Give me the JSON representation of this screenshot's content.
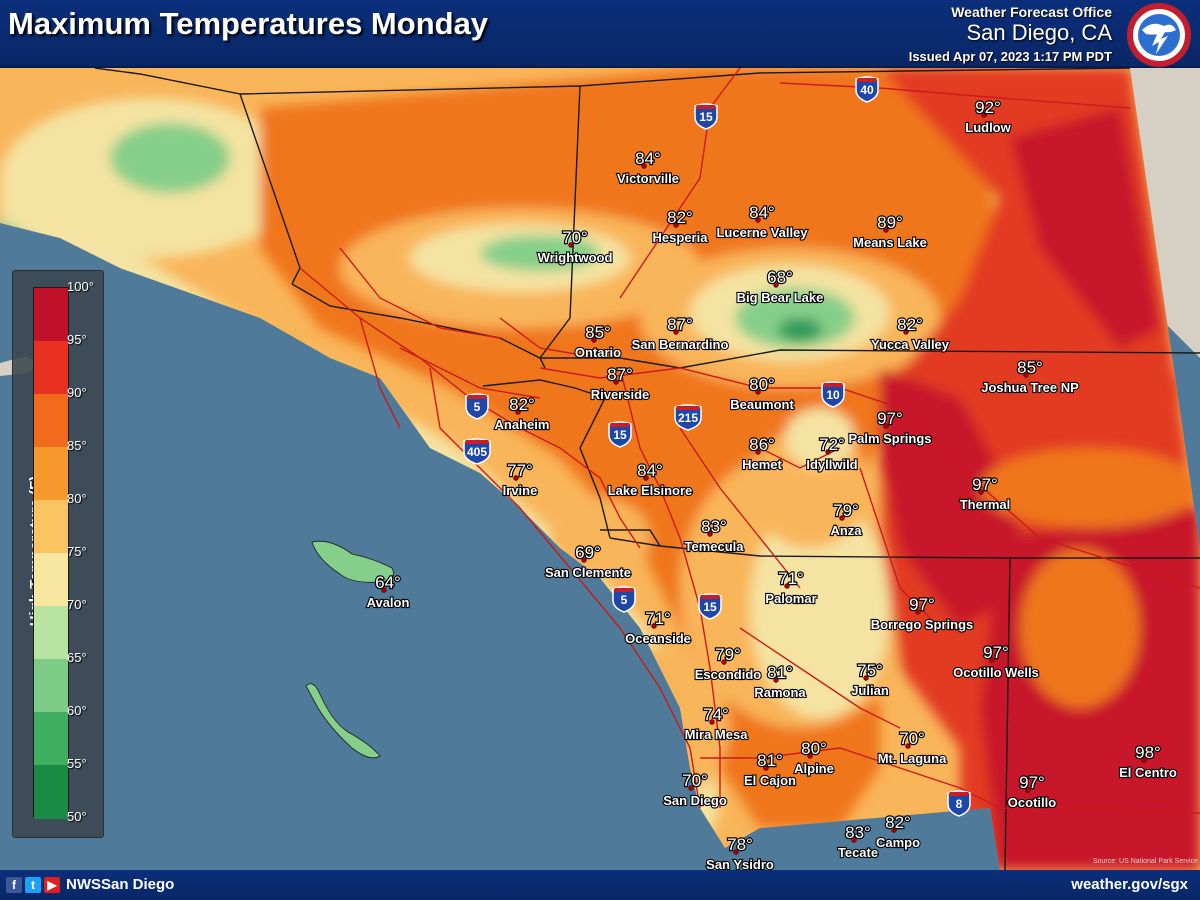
{
  "header": {
    "title": "Maximum Temperatures Monday",
    "office_label": "Weather Forecast Office",
    "office_city": "San Diego, CA",
    "issued": "Issued Apr 07, 2023 1:17 PM PDT",
    "logo_text": "NATIONAL WEATHER SERVICE"
  },
  "legend": {
    "title": "High Temperature (F)",
    "ticks": [
      "100°",
      "95°",
      "90°",
      "85°",
      "80°",
      "75°",
      "70°",
      "65°",
      "60°",
      "55°",
      "50°"
    ],
    "colors": [
      "#c0102a",
      "#e83020",
      "#f26a1c",
      "#f7992c",
      "#fbc462",
      "#f6e6a0",
      "#b9e3a0",
      "#7ccc85",
      "#3fae60",
      "#1b8a45"
    ]
  },
  "map": {
    "colors": {
      "ocean": "#4f7a9a",
      "desert": "#d6d0c4",
      "hot": "#e23a22",
      "very_hot": "#c8142a",
      "warm": "#f0761e",
      "mild": "#f9b55a",
      "cool": "#f4e3a2",
      "green": "#86cf8a",
      "dark_green": "#2e9a56",
      "road": "#cc1a1a",
      "boundary": "#1a1a1a"
    },
    "cities": [
      {
        "temp": "92°",
        "name": "Ludlow"
      },
      {
        "temp": "84°",
        "name": "Victorville"
      },
      {
        "temp": "82°",
        "name": "Hesperia"
      },
      {
        "temp": "84°",
        "name": "Lucerne Valley"
      },
      {
        "temp": "89°",
        "name": "Means Lake"
      },
      {
        "temp": "70°",
        "name": "Wrightwood"
      },
      {
        "temp": "68°",
        "name": "Big Bear Lake"
      },
      {
        "temp": "85°",
        "name": "Ontario"
      },
      {
        "temp": "87°",
        "name": "San Bernardino"
      },
      {
        "temp": "82°",
        "name": "Yucca Valley"
      },
      {
        "temp": "85°",
        "name": "Joshua Tree NP"
      },
      {
        "temp": "87°",
        "name": "Riverside"
      },
      {
        "temp": "80°",
        "name": "Beaumont"
      },
      {
        "temp": "82°",
        "name": "Anaheim"
      },
      {
        "temp": "97°",
        "name": "Palm Springs"
      },
      {
        "temp": "86°",
        "name": "Hemet"
      },
      {
        "temp": "72°",
        "name": "Idyllwild"
      },
      {
        "temp": "77°",
        "name": "Irvine"
      },
      {
        "temp": "84°",
        "name": "Lake Elsinore"
      },
      {
        "temp": "97°",
        "name": "Thermal"
      },
      {
        "temp": "79°",
        "name": "Anza"
      },
      {
        "temp": "83°",
        "name": "Temecula"
      },
      {
        "temp": "69°",
        "name": "San Clemente"
      },
      {
        "temp": "64°",
        "name": "Avalon"
      },
      {
        "temp": "71°",
        "name": "Palomar"
      },
      {
        "temp": "97°",
        "name": "Borrego Springs"
      },
      {
        "temp": "71°",
        "name": "Oceanside"
      },
      {
        "temp": "97°",
        "name": "Ocotillo Wells"
      },
      {
        "temp": "79°",
        "name": "Escondido"
      },
      {
        "temp": "81°",
        "name": "Ramona"
      },
      {
        "temp": "75°",
        "name": "Julian"
      },
      {
        "temp": "74°",
        "name": "Mira Mesa"
      },
      {
        "temp": "70°",
        "name": "Mt. Laguna"
      },
      {
        "temp": "98°",
        "name": "El Centro"
      },
      {
        "temp": "81°",
        "name": "El Cajon"
      },
      {
        "temp": "80°",
        "name": "Alpine"
      },
      {
        "temp": "97°",
        "name": "Ocotillo"
      },
      {
        "temp": "70°",
        "name": "San Diego"
      },
      {
        "temp": "82°",
        "name": "Campo"
      },
      {
        "temp": "83°",
        "name": "Tecate"
      },
      {
        "temp": "78°",
        "name": "San Ysidro"
      }
    ],
    "highways": [
      {
        "name": "I-40",
        "number": "40"
      },
      {
        "name": "I-15",
        "number": "15"
      },
      {
        "name": "I-10",
        "number": "10"
      },
      {
        "name": "I-5",
        "number": "5"
      },
      {
        "name": "I-405",
        "number": "405"
      },
      {
        "name": "I-215",
        "number": "215"
      },
      {
        "name": "I-15",
        "number": "15"
      },
      {
        "name": "I-5",
        "number": "5"
      },
      {
        "name": "I-15",
        "number": "15"
      },
      {
        "name": "I-8",
        "number": "8"
      }
    ]
  },
  "footer": {
    "handle": "NWSSan Diego",
    "site": "weather.gov/sgx",
    "credit": "Source: US National Park Service"
  }
}
